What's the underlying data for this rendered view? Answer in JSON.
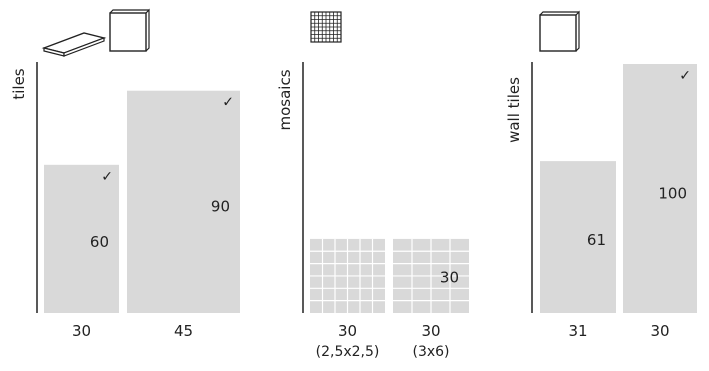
{
  "chart_data": [
    {
      "type": "bar",
      "ylabel": "tiles",
      "categories": [
        "30",
        "45"
      ],
      "sublabels": [
        "",
        ""
      ],
      "values": [
        60,
        90
      ],
      "value_labels": [
        "60",
        "90"
      ],
      "check": [
        "✓",
        "✓"
      ],
      "icons": [
        "flat-tile-icon",
        "square-tile-icon"
      ]
    },
    {
      "type": "bar",
      "ylabel": "mosaics",
      "categories": [
        "30",
        "30"
      ],
      "sublabels": [
        "(2,5x2,5)",
        "(3x6)"
      ],
      "values": [
        30,
        30
      ],
      "value_labels": [
        "",
        "30"
      ],
      "check": [
        "",
        ""
      ],
      "icons": [
        "mosaic-grid-icon"
      ]
    },
    {
      "type": "bar",
      "ylabel": "wall tiles",
      "categories": [
        "31",
        "30"
      ],
      "sublabels": [
        "",
        ""
      ],
      "values": [
        61,
        100
      ],
      "value_labels": [
        "61",
        "100"
      ],
      "check": [
        "",
        "✓"
      ],
      "icons": [
        "square-tile-icon"
      ]
    }
  ],
  "colors": {
    "bar": "#d9d9d9",
    "axis": "#222222",
    "text": "#222222"
  }
}
